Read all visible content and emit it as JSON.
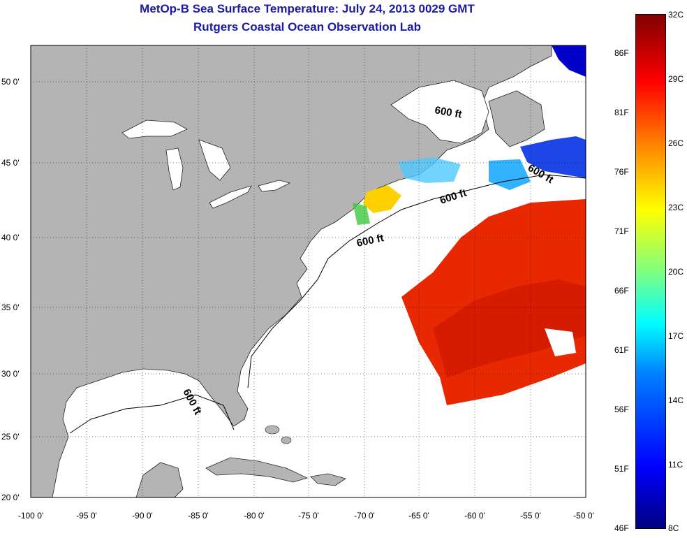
{
  "title": {
    "line1": "MetOp-B Sea Surface Temperature:  July 24, 2013 0029 GMT",
    "line2": "Rutgers Coastal Ocean Observation Lab"
  },
  "x_ticks": [
    "-100 0'",
    "-95 0'",
    "-90 0'",
    "-85 0'",
    "-80 0'",
    "-75 0'",
    "-70 0'",
    "-65 0'",
    "-60 0'",
    "-55 0'",
    "-50 0'"
  ],
  "y_ticks": [
    "50 0'",
    "45 0'",
    "40 0'",
    "35 0'",
    "30 0'",
    "25 0'",
    "20 0'"
  ],
  "isobath_labels": [
    "600 ft",
    "600 ft",
    "600 ft",
    "600 ft",
    "600 ft"
  ],
  "colorbar": {
    "fahrenheit": [
      "86F",
      "81F",
      "76F",
      "71F",
      "66F",
      "61F",
      "56F",
      "51F",
      "46F"
    ],
    "celsius": [
      "32C",
      "29C",
      "26C",
      "23C",
      "20C",
      "17C",
      "14C",
      "11C",
      "8C"
    ]
  },
  "colors": {
    "land": "#b4b4b4",
    "ocean": "#ffffff",
    "title": "#1a1aa6",
    "warm": "#e82800",
    "cool": "#1e46e6"
  }
}
